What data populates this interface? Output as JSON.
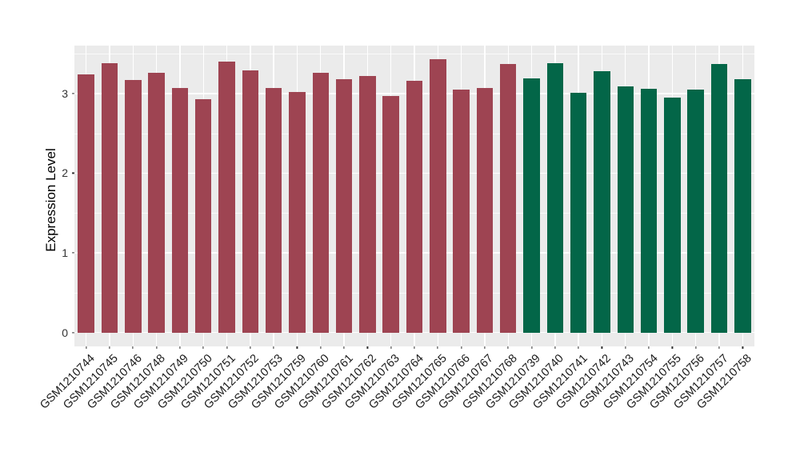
{
  "chart_data": {
    "type": "bar",
    "title": "",
    "xlabel": "",
    "ylabel": "Expression Level",
    "categories": [
      "GSM1210744",
      "GSM1210745",
      "GSM1210746",
      "GSM1210748",
      "GSM1210749",
      "GSM1210750",
      "GSM1210751",
      "GSM1210752",
      "GSM1210753",
      "GSM1210759",
      "GSM1210760",
      "GSM1210761",
      "GSM1210762",
      "GSM1210763",
      "GSM1210764",
      "GSM1210765",
      "GSM1210766",
      "GSM1210767",
      "GSM1210768",
      "GSM1210739",
      "GSM1210740",
      "GSM1210741",
      "GSM1210742",
      "GSM1210743",
      "GSM1210754",
      "GSM1210755",
      "GSM1210756",
      "GSM1210757",
      "GSM1210758"
    ],
    "values": [
      3.24,
      3.38,
      3.17,
      3.26,
      3.07,
      2.93,
      3.4,
      3.29,
      3.07,
      3.02,
      3.26,
      3.18,
      3.22,
      2.97,
      3.16,
      3.43,
      3.05,
      3.07,
      3.37,
      3.19,
      3.38,
      3.01,
      3.28,
      3.09,
      3.06,
      2.95,
      3.05,
      3.37,
      3.18
    ],
    "colors": [
      "#9E4452",
      "#9E4452",
      "#9E4452",
      "#9E4452",
      "#9E4452",
      "#9E4452",
      "#9E4452",
      "#9E4452",
      "#9E4452",
      "#9E4452",
      "#9E4452",
      "#9E4452",
      "#9E4452",
      "#9E4452",
      "#9E4452",
      "#9E4452",
      "#9E4452",
      "#9E4452",
      "#9E4452",
      "#036648",
      "#036648",
      "#036648",
      "#036648",
      "#036648",
      "#036648",
      "#036648",
      "#036648",
      "#036648",
      "#036648"
    ],
    "group_colors": {
      "group1": "#9E4452",
      "group2": "#036648"
    },
    "group_split_index": 19,
    "yticks": [
      0,
      1,
      2,
      3
    ],
    "ytick_labels": [
      "0",
      "1",
      "2",
      "3"
    ],
    "minor_yticks": [
      0.5,
      1.5,
      2.5,
      3.5
    ],
    "ylim": [
      -0.17,
      3.6
    ],
    "grid": true,
    "legend_position": "none",
    "panel_background": "#EBEBEB",
    "grid_color": "#FFFFFF"
  }
}
